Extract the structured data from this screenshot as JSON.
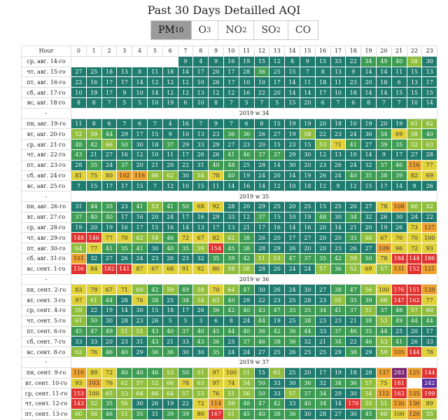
{
  "title": "Past 30 Days Detailled AQI",
  "tabs": [
    {
      "base": "PM",
      "sub": "10"
    },
    {
      "base": "O",
      "sub": "3"
    },
    {
      "base": "NO",
      "sub": "2"
    },
    {
      "base": "SO",
      "sub": "2"
    },
    {
      "base": "CO",
      "sub": null
    }
  ],
  "active_tab": 0,
  "table": {
    "corner": "Hour",
    "hours": [
      0,
      1,
      2,
      3,
      4,
      5,
      6,
      7,
      8,
      9,
      10,
      11,
      12,
      13,
      14,
      15,
      16,
      17,
      18,
      19,
      20,
      21,
      22,
      23
    ],
    "rows": [
      {
        "date": "ср, авг. 14-го",
        "values": [
          null,
          null,
          null,
          null,
          null,
          null,
          null,
          9,
          4,
          9,
          16,
          19,
          15,
          12,
          8,
          9,
          15,
          33,
          22,
          34,
          49,
          40,
          58,
          30
        ]
      },
      {
        "date": "чт, авг. 15-го",
        "values": [
          27,
          25,
          18,
          13,
          8,
          11,
          18,
          14,
          17,
          20,
          17,
          28,
          36,
          25,
          15,
          7,
          8,
          13,
          9,
          14,
          14,
          11,
          15,
          13
        ]
      },
      {
        "date": "пт, авг. 16-го",
        "values": [
          22,
          16,
          17,
          17,
          14,
          12,
          12,
          12,
          10,
          26,
          17,
          10,
          10,
          17,
          14,
          11,
          18,
          11,
          23,
          20,
          18,
          6,
          13,
          17
        ]
      },
      {
        "date": "сб, авг. 17-го",
        "values": [
          10,
          19,
          17,
          9,
          10,
          14,
          12,
          12,
          13,
          12,
          12,
          16,
          22,
          20,
          14,
          14,
          17,
          10,
          18,
          14,
          14,
          15,
          15,
          15
        ]
      },
      {
        "date": "вс, авг. 18-го",
        "values": [
          8,
          8,
          7,
          5,
          5,
          10,
          19,
          6,
          10,
          8,
          7,
          5,
          7,
          5,
          15,
          20,
          6,
          7,
          6,
          8,
          7,
          7,
          10,
          14
        ]
      },
      {
        "marker": "-",
        "week": "2019 w 34"
      },
      {
        "date": "пн, авг. 19-го",
        "values": [
          11,
          8,
          6,
          7,
          6,
          7,
          4,
          16,
          7,
          9,
          7,
          6,
          8,
          15,
          19,
          19,
          20,
          18,
          10,
          19,
          20,
          19,
          61,
          62
        ]
      },
      {
        "date": "вт, авг. 20-го",
        "values": [
          52,
          59,
          44,
          29,
          17,
          15,
          9,
          10,
          13,
          23,
          36,
          36,
          26,
          27,
          19,
          58,
          22,
          23,
          24,
          30,
          34,
          69,
          58,
          40
        ]
      },
      {
        "date": "ср, авг. 21-го",
        "values": [
          48,
          42,
          66,
          50,
          30,
          18,
          37,
          29,
          33,
          29,
          27,
          23,
          20,
          15,
          23,
          15,
          53,
          71,
          41,
          27,
          39,
          35,
          52,
          63
        ]
      },
      {
        "date": "чт, авг. 22-го",
        "values": [
          43,
          21,
          27,
          16,
          12,
          10,
          11,
          17,
          26,
          26,
          41,
          46,
          37,
          37,
          29,
          30,
          12,
          13,
          10,
          14,
          9,
          17,
          27,
          28
        ]
      },
      {
        "date": "пт, авг. 23-го",
        "values": [
          28,
          35,
          24,
          37,
          20,
          21,
          20,
          22,
          31,
          40,
          48,
          25,
          28,
          14,
          30,
          20,
          23,
          26,
          24,
          32,
          37,
          46,
          116,
          77
        ]
      },
      {
        "date": "сб, авг. 24-го",
        "values": [
          81,
          75,
          80,
          102,
          116,
          66,
          62,
          30,
          54,
          78,
          40,
          19,
          24,
          20,
          14,
          19,
          26,
          24,
          40,
          35,
          38,
          39,
          82,
          69
        ]
      },
      {
        "date": "вс, авг. 25-го",
        "values": [
          7,
          15,
          17,
          17,
          15,
          7,
          12,
          10,
          15,
          11,
          14,
          16,
          14,
          12,
          10,
          18,
          12,
          9,
          12,
          15,
          17,
          14,
          9,
          26
        ]
      },
      {
        "marker": "-",
        "week": "2019 w 35"
      },
      {
        "date": "пн, авг. 26-го",
        "values": [
          31,
          44,
          35,
          23,
          41,
          53,
          41,
          50,
          68,
          92,
          28,
          20,
          29,
          25,
          20,
          25,
          15,
          25,
          20,
          27,
          78,
          108,
          60,
          52
        ]
      },
      {
        "date": "вт, авг. 27-го",
        "values": [
          37,
          40,
          40,
          17,
          16,
          20,
          24,
          17,
          16,
          29,
          33,
          12,
          37,
          15,
          10,
          19,
          48,
          30,
          34,
          32,
          26,
          30,
          24,
          22
        ]
      },
      {
        "date": "ср, авг. 28-го",
        "values": [
          19,
          20,
          19,
          16,
          17,
          15,
          16,
          14,
          13,
          17,
          13,
          21,
          17,
          16,
          14,
          16,
          20,
          14,
          21,
          20,
          19,
          26,
          73,
          127
        ]
      },
      {
        "date": "чт, авг. 29-го",
        "values": [
          148,
          146,
          77,
          70,
          62,
          54,
          46,
          72,
          67,
          82,
          62,
          38,
          26,
          20,
          17,
          27,
          20,
          20,
          35,
          60,
          67,
          70,
          70,
          100
        ]
      },
      {
        "date": "пт, авг. 30-го",
        "values": [
          64,
          77,
          41,
          35,
          41,
          30,
          40,
          35,
          59,
          154,
          45,
          38,
          28,
          29,
          26,
          20,
          20,
          23,
          26,
          27,
          109,
          96,
          72,
          93
        ]
      },
      {
        "date": "сб, авг. 31-го",
        "values": [
          101,
          32,
          27,
          26,
          24,
          23,
          26,
          23,
          32,
          35,
          39,
          42,
          51,
          53,
          47,
          37,
          35,
          42,
          59,
          50,
          78,
          184,
          144,
          186
        ]
      },
      {
        "date": "вс, сент. 1-го",
        "values": [
          156,
          84,
          182,
          141,
          87,
          67,
          68,
          91,
          92,
          80,
          58,
          58,
          28,
          20,
          24,
          24,
          57,
          36,
          52,
          69,
          57,
          131,
          152,
          121
        ]
      },
      {
        "marker": "-",
        "week": "2019 w 36"
      },
      {
        "date": "пн, сент. 2-го",
        "values": [
          83,
          79,
          67,
          71,
          60,
          42,
          59,
          49,
          58,
          70,
          64,
          47,
          30,
          26,
          24,
          30,
          27,
          38,
          47,
          56,
          100,
          176,
          151,
          139
        ]
      },
      {
        "date": "вт, сент. 3-го",
        "values": [
          97,
          61,
          44,
          28,
          76,
          38,
          25,
          38,
          54,
          63,
          40,
          29,
          22,
          23,
          25,
          28,
          23,
          55,
          35,
          39,
          66,
          147,
          162,
          77
        ]
      },
      {
        "date": "ср, сент. 4-го",
        "values": [
          59,
          22,
          19,
          14,
          30,
          15,
          18,
          17,
          26,
          36,
          42,
          40,
          43,
          47,
          35,
          35,
          34,
          41,
          37,
          51,
          37,
          48,
          57,
          60
        ]
      },
      {
        "date": "чт, сент. 5-го",
        "values": [
          61,
          50,
          30,
          28,
          23,
          26,
          5,
          5,
          3,
          6,
          8,
          24,
          44,
          19,
          25,
          38,
          23,
          23,
          21,
          38,
          53,
          49,
          44,
          44
        ]
      },
      {
        "date": "пт, сент. 6-го",
        "values": [
          45,
          47,
          49,
          51,
          51,
          43,
          40,
          37,
          40,
          45,
          44,
          40,
          36,
          42,
          36,
          44,
          33,
          37,
          46,
          35,
          44,
          25,
          20,
          17
        ]
      },
      {
        "date": "сб, сент. 7-го",
        "values": [
          33,
          33,
          20,
          23,
          31,
          43,
          21,
          33,
          43,
          36,
          25,
          37,
          46,
          38,
          36,
          32,
          21,
          34,
          22,
          46,
          53,
          41,
          26,
          33
        ]
      },
      {
        "date": "вс, сент. 8-го",
        "values": [
          62,
          76,
          46,
          40,
          29,
          36,
          36,
          30,
          30,
          35,
          24,
          24,
          27,
          25,
          26,
          25,
          25,
          29,
          38,
          29,
          59,
          105,
          144,
          78
        ]
      },
      {
        "marker": "-",
        "week": "2019 w 37"
      },
      {
        "date": "пн, сент. 9-го",
        "values": [
          110,
          89,
          72,
          40,
          40,
          46,
          53,
          50,
          51,
          97,
          100,
          51,
          15,
          61,
          25,
          20,
          17,
          19,
          18,
          28,
          137,
          283,
          125,
          144
        ]
      },
      {
        "date": "вт, сент. 10-го",
        "values": [
          93,
          103,
          76,
          62,
          57,
          52,
          66,
          78,
          63,
          97,
          74,
          54,
          50,
          33,
          30,
          36,
          32,
          34,
          36,
          57,
          75,
          181,
          null,
          242
        ]
      },
      {
        "date": "ср, сент. 11-го",
        "values": [
          153,
          100,
          65,
          53,
          64,
          66,
          64,
          57,
          53,
          76,
          51,
          56,
          50,
          33,
          57,
          37,
          34,
          29,
          30,
          54,
          112,
          163,
          135,
          199
        ]
      },
      {
        "date": "чт, сент. 12-го",
        "values": [
          143,
          52,
          35,
          56,
          30,
          26,
          19,
          22,
          72,
          114,
          59,
          48,
          47,
          42,
          33,
          40,
          34,
          14,
          170,
          55,
          51,
          130,
          136,
          89
        ]
      },
      {
        "date": "пт, сент. 13-го",
        "values": [
          60,
          56,
          46,
          51,
          35,
          31,
          39,
          39,
          80,
          167,
          51,
          45,
          40,
          38,
          36,
          30,
          28,
          27,
          30,
          45,
          60,
          100,
          120,
          55
        ]
      }
    ]
  }
}
